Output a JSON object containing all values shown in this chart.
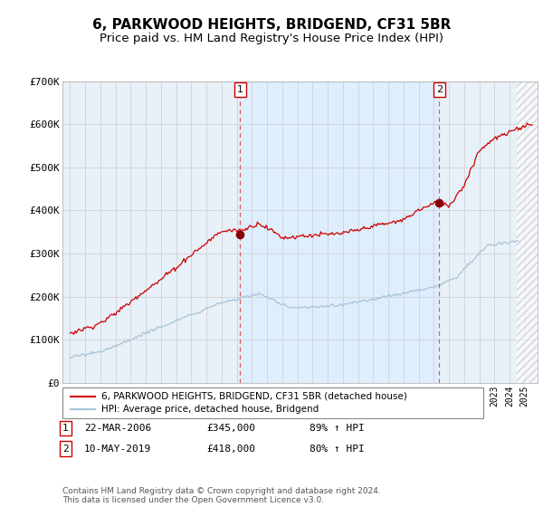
{
  "title": "6, PARKWOOD HEIGHTS, BRIDGEND, CF31 5BR",
  "subtitle": "Price paid vs. HM Land Registry's House Price Index (HPI)",
  "legend_label_red": "6, PARKWOOD HEIGHTS, BRIDGEND, CF31 5BR (detached house)",
  "legend_label_blue": "HPI: Average price, detached house, Bridgend",
  "transaction1_date": "22-MAR-2006",
  "transaction1_price": 345000,
  "transaction1_hpi": "89% ↑ HPI",
  "transaction2_date": "10-MAY-2019",
  "transaction2_price": 418000,
  "transaction2_hpi": "80% ↑ HPI",
  "footnote": "Contains HM Land Registry data © Crown copyright and database right 2024.\nThis data is licensed under the Open Government Licence v3.0.",
  "ylim": [
    0,
    700000
  ],
  "yticks": [
    0,
    100000,
    200000,
    300000,
    400000,
    500000,
    600000,
    700000
  ],
  "ytick_labels": [
    "£0",
    "£100K",
    "£200K",
    "£300K",
    "£400K",
    "£500K",
    "£600K",
    "£700K"
  ],
  "hpi_color": "#a8c4d8",
  "price_color": "#cc0000",
  "bg_fill_color": "#ddeeff",
  "transaction1_x": 2006.23,
  "transaction2_x": 2019.37,
  "grid_color": "#cccccc",
  "title_fontsize": 11,
  "subtitle_fontsize": 9.5,
  "axes_bg_color": "#e8f0f8",
  "vline_color": "#cc0000",
  "marker_color": "#880000",
  "hatch_color": "#bbbbbb"
}
